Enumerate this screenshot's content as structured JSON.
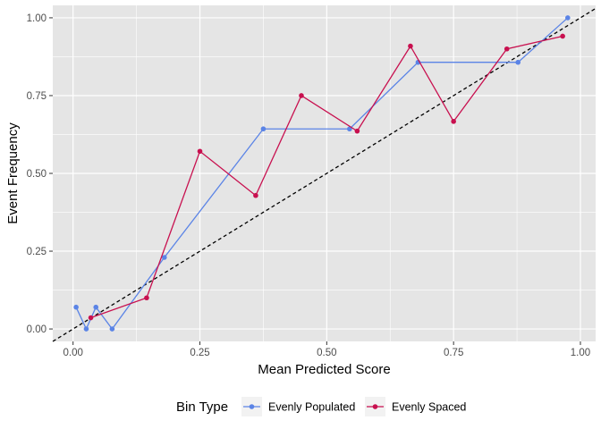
{
  "chart_data": {
    "type": "line",
    "title": "",
    "xlabel": "Mean Predicted Score",
    "ylabel": "Event Frequency",
    "xlim": [
      -0.04,
      1.03
    ],
    "ylim": [
      -0.04,
      1.04
    ],
    "x_ticks": [
      0.0,
      0.25,
      0.5,
      0.75,
      1.0
    ],
    "x_tick_labels": [
      "0.00",
      "0.25",
      "0.50",
      "0.75",
      "1.00"
    ],
    "y_ticks": [
      0.0,
      0.25,
      0.5,
      0.75,
      1.0
    ],
    "y_tick_labels": [
      "0.00",
      "0.25",
      "0.50",
      "0.75",
      "1.00"
    ],
    "grid": true,
    "panel_background": "#e5e5e5",
    "grid_color": "#ffffff",
    "reference_line": {
      "style": "dashed",
      "color": "#000000",
      "from": [
        -0.04,
        -0.04
      ],
      "to": [
        1.03,
        1.03
      ]
    },
    "legend": {
      "title": "Bin Type",
      "position": "bottom"
    },
    "series": [
      {
        "name": "Evenly Populated",
        "color": "#5b84e6",
        "x": [
          0.006,
          0.026,
          0.045,
          0.077,
          0.18,
          0.375,
          0.545,
          0.68,
          0.877,
          0.975
        ],
        "y": [
          0.07,
          0.0,
          0.07,
          0.0,
          0.23,
          0.643,
          0.643,
          0.857,
          0.857,
          1.0
        ]
      },
      {
        "name": "Evenly Spaced",
        "color": "#c8104f",
        "x": [
          0.035,
          0.145,
          0.25,
          0.36,
          0.45,
          0.56,
          0.665,
          0.75,
          0.855,
          0.965
        ],
        "y": [
          0.036,
          0.1,
          0.571,
          0.429,
          0.75,
          0.636,
          0.909,
          0.667,
          0.9,
          0.941
        ]
      }
    ]
  }
}
